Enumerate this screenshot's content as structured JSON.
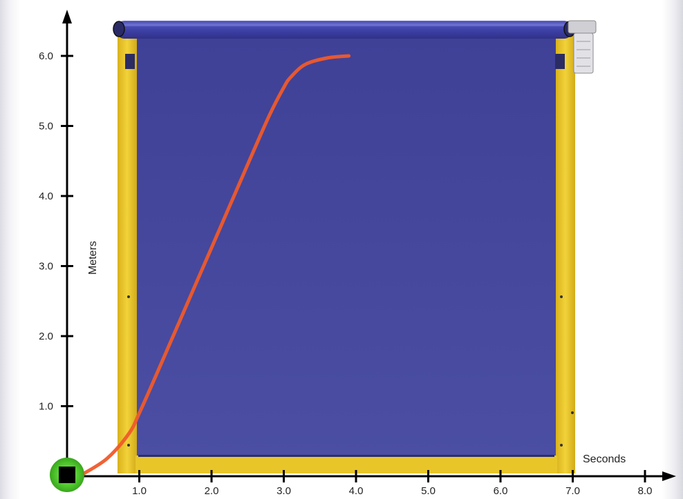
{
  "chart_data": {
    "type": "line",
    "title": "",
    "xlabel": "Seconds",
    "ylabel": "Meters",
    "xlim": [
      0,
      8.0
    ],
    "ylim": [
      0,
      6.0
    ],
    "xticks": [
      "1.0",
      "2.0",
      "3.0",
      "4.0",
      "5.0",
      "6.0",
      "7.0",
      "8.0"
    ],
    "yticks": [
      "1.0",
      "2.0",
      "3.0",
      "4.0",
      "5.0",
      "6.0"
    ],
    "series": [
      {
        "color": "#f05a2a",
        "x": [
          0.2,
          0.55,
          0.85,
          1.0,
          1.3,
          1.7,
          2.1,
          2.5,
          2.8,
          3.0,
          3.1,
          3.3,
          3.6,
          3.9
        ],
        "y": [
          0.02,
          0.25,
          0.6,
          0.9,
          1.6,
          2.55,
          3.5,
          4.45,
          5.15,
          5.55,
          5.7,
          5.88,
          5.97,
          6.0
        ]
      }
    ],
    "grid": false,
    "legend": "none"
  },
  "background": {
    "description_colors": {
      "panel": "#45479e",
      "frame": "#e8c62a",
      "roller": "#4a4db0",
      "marker_square": "#000000",
      "marker_glow": "#55cc33"
    }
  }
}
